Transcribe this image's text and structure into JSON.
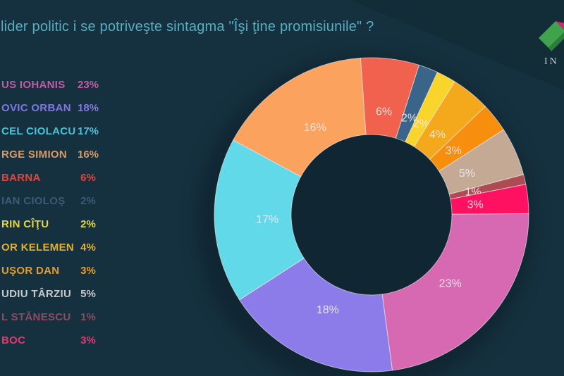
{
  "page": {
    "background_color": "#15313f",
    "title_color": "#58aec3"
  },
  "header": {
    "title": "lider politic i se potriveşte sintagma \"Îşi ţine promisiunile\" ?"
  },
  "logo": {
    "text": "IN",
    "green_face_color": "#3ea34c",
    "pink_face_color": "#d6256e",
    "text_color": "#c2cbcf"
  },
  "legend": {
    "position": "left",
    "items": [
      {
        "label": "US IOHANIS",
        "value": "23%",
        "color": "#c05ca6"
      },
      {
        "label": "OVIC ORBAN",
        "value": "18%",
        "color": "#8177dd"
      },
      {
        "label": "CEL CIOLACU",
        "value": "17%",
        "color": "#49c3d6"
      },
      {
        "label": "RGE SIMION",
        "value": "16%",
        "color": "#d89a68"
      },
      {
        "label": "BARNA",
        "value": "6%",
        "color": "#e2453f"
      },
      {
        "label": "IAN CIOLOŞ",
        "value": "2%",
        "color": "#3d5a74"
      },
      {
        "label": "RIN CÎŢU",
        "value": "2%",
        "color": "#e5d83e"
      },
      {
        "label": "OR KELEMEN",
        "value": "4%",
        "color": "#e2b133"
      },
      {
        "label": "UŞOR DAN",
        "value": "3%",
        "color": "#e59d2a"
      },
      {
        "label": "UDIU TÂRZIU",
        "value": "5%",
        "color": "#c6c8c9"
      },
      {
        "label": "L STĂNESCU",
        "value": "1%",
        "color": "#8e4a60"
      },
      {
        "label": "BOC",
        "value": "3%",
        "color": "#dd3a6e"
      }
    ]
  },
  "chart_data": {
    "type": "pie",
    "subtype": "donut",
    "title": "lider politic i se potriveşte sintagma \"Îşi ţine promisiunile\" ?",
    "legend_position": "left",
    "start_angle_deg": -4,
    "direction": "clockwise-from-top",
    "inner_radius_ratio": 0.51,
    "slice_label_format": "percent",
    "slice_label_color": "#f2e9ee",
    "slice_border_color": "rgba(245,240,242,0.6)",
    "slices": [
      {
        "label": "BARNA",
        "value": 6,
        "display": "6%",
        "color": "#f0624d"
      },
      {
        "label": "IAN CIOLOŞ",
        "value": 2,
        "display": "2%",
        "color": "#3a6488"
      },
      {
        "label": "RIN CÎŢU",
        "value": 2,
        "display": "2%",
        "color": "#f9d42b"
      },
      {
        "label": "OR KELEMEN",
        "value": 4,
        "display": "4%",
        "color": "#f4a91c"
      },
      {
        "label": "UŞOR DAN",
        "value": 3,
        "display": "3%",
        "color": "#f78e0d"
      },
      {
        "label": "UDIU TÂRZIU",
        "value": 5,
        "display": "5%",
        "color": "#c4aa94"
      },
      {
        "label": "L STĂNESCU",
        "value": 1,
        "display": "1%",
        "color": "#ae4a51"
      },
      {
        "label": "BOC",
        "value": 3,
        "display": "3%",
        "color": "#fd1160"
      },
      {
        "label": "US IOHANIS",
        "value": 23,
        "display": "23%",
        "color": "#d669b1"
      },
      {
        "label": "OVIC ORBAN",
        "value": 18,
        "display": "18%",
        "color": "#8b7ce9"
      },
      {
        "label": "CEL CIOLACU",
        "value": 17,
        "display": "17%",
        "color": "#62d9e9"
      },
      {
        "label": "RGE SIMION",
        "value": 16,
        "display": "16%",
        "color": "#fba25e"
      }
    ]
  }
}
